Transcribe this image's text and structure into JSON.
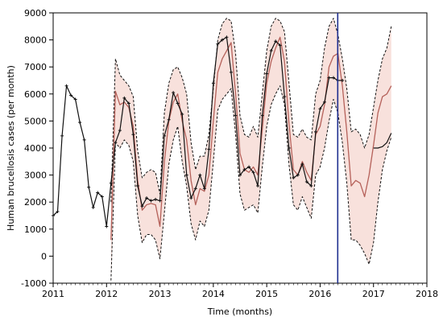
{
  "chart_data": {
    "type": "line",
    "xlabel": "Time (months)",
    "ylabel": "Human brucellosis cases (per month)",
    "xlim": [
      2011,
      2018
    ],
    "ylim": [
      -1000,
      9000
    ],
    "x_ticks": [
      2011,
      2012,
      2013,
      2014,
      2015,
      2016,
      2017,
      2018
    ],
    "y_ticks": [
      -1000,
      0,
      1000,
      2000,
      3000,
      4000,
      5000,
      6000,
      7000,
      8000,
      9000
    ],
    "grid": false,
    "vertical_line_x": 2016.33,
    "colors": {
      "observed": "#111111",
      "fitted": "#b5615a",
      "confidence": "#111111",
      "band": "#f2c8c0",
      "vline": "#1f2f8f"
    },
    "series": [
      {
        "role": "observed",
        "x": [
          2011.0,
          2011.083,
          2011.167,
          2011.25,
          2011.333,
          2011.417,
          2011.5,
          2011.583,
          2011.667,
          2011.75,
          2011.833,
          2011.917,
          2012.0,
          2012.083,
          2012.167,
          2012.25,
          2012.333,
          2012.417,
          2012.5,
          2012.583,
          2012.667,
          2012.75,
          2012.833,
          2012.917,
          2013.0,
          2013.083,
          2013.167,
          2013.25,
          2013.333,
          2013.417,
          2013.5,
          2013.583,
          2013.667,
          2013.75,
          2013.833,
          2013.917,
          2014.0,
          2014.083,
          2014.167,
          2014.25,
          2014.333,
          2014.417,
          2014.5,
          2014.583,
          2014.667,
          2014.75,
          2014.833,
          2014.917,
          2015.0,
          2015.083,
          2015.167,
          2015.25,
          2015.333,
          2015.417,
          2015.5,
          2015.583,
          2015.667,
          2015.75,
          2015.833,
          2015.917,
          2016.0,
          2016.083,
          2016.167,
          2016.25,
          2016.333,
          2016.417
        ],
        "values": [
          1500,
          1650,
          4450,
          6300,
          5950,
          5800,
          4950,
          4300,
          2550,
          1800,
          2350,
          2200,
          1100,
          2700,
          4200,
          4650,
          5850,
          5650,
          4500,
          2600,
          1850,
          2150,
          2050,
          2100,
          2050,
          4450,
          5050,
          6050,
          5650,
          5250,
          3000,
          2150,
          2500,
          3000,
          2500,
          3950,
          6400,
          7850,
          8000,
          8100,
          6800,
          5200,
          3000,
          3200,
          3300,
          3100,
          2600,
          5200,
          6750,
          7600,
          7950,
          7800,
          5900,
          4000,
          2900,
          3000,
          3400,
          2750,
          2600,
          4600,
          5450,
          5700,
          6600,
          6600,
          6500,
          6500
        ]
      },
      {
        "role": "observed-after",
        "x": [
          2017.0,
          2017.083,
          2017.167,
          2017.25,
          2017.333
        ],
        "values": [
          4000,
          4000,
          4050,
          4200,
          4550
        ]
      },
      {
        "role": "fitted",
        "x": [
          2012.083,
          2012.167,
          2012.25,
          2012.333,
          2012.417,
          2012.5,
          2012.583,
          2012.667,
          2012.75,
          2012.833,
          2012.917,
          2013.0,
          2013.083,
          2013.167,
          2013.25,
          2013.333,
          2013.417,
          2013.5,
          2013.583,
          2013.667,
          2013.75,
          2013.833,
          2013.917,
          2014.0,
          2014.083,
          2014.167,
          2014.25,
          2014.333,
          2014.417,
          2014.5,
          2014.583,
          2014.667,
          2014.75,
          2014.833,
          2014.917,
          2015.0,
          2015.083,
          2015.167,
          2015.25,
          2015.333,
          2015.417,
          2015.5,
          2015.583,
          2015.667,
          2015.75,
          2015.833,
          2015.917,
          2016.0,
          2016.083,
          2016.167,
          2016.25,
          2016.333,
          2016.417,
          2016.5,
          2016.583,
          2016.667,
          2016.75,
          2016.833,
          2016.917,
          2017.0,
          2017.083,
          2017.167,
          2017.25,
          2017.333
        ],
        "values": [
          600,
          6100,
          5600,
          5700,
          5500,
          4800,
          2800,
          1700,
          1900,
          1950,
          1900,
          1100,
          3500,
          5000,
          5700,
          6000,
          5000,
          4300,
          2800,
          1900,
          2500,
          2400,
          3000,
          5000,
          6800,
          7300,
          7600,
          7900,
          6000,
          3800,
          3200,
          3100,
          3300,
          3000,
          4700,
          6400,
          7200,
          7700,
          8100,
          7200,
          4900,
          3200,
          3000,
          3500,
          3100,
          2800,
          4500,
          4800,
          5600,
          7000,
          7400,
          7500,
          6300,
          4600,
          2600,
          2800,
          2700,
          2200,
          3000,
          4100,
          5300,
          5900,
          6000,
          6300
        ]
      },
      {
        "role": "upper",
        "x": [
          2012.083,
          2012.167,
          2012.25,
          2012.333,
          2012.417,
          2012.5,
          2012.583,
          2012.667,
          2012.75,
          2012.833,
          2012.917,
          2013.0,
          2013.083,
          2013.167,
          2013.25,
          2013.333,
          2013.417,
          2013.5,
          2013.583,
          2013.667,
          2013.75,
          2013.833,
          2013.917,
          2014.0,
          2014.083,
          2014.167,
          2014.25,
          2014.333,
          2014.417,
          2014.5,
          2014.583,
          2014.667,
          2014.75,
          2014.833,
          2014.917,
          2015.0,
          2015.083,
          2015.167,
          2015.25,
          2015.333,
          2015.417,
          2015.5,
          2015.583,
          2015.667,
          2015.75,
          2015.833,
          2015.917,
          2016.0,
          2016.083,
          2016.167,
          2016.25,
          2016.333,
          2016.417,
          2016.5,
          2016.583,
          2016.667,
          2016.75,
          2016.833,
          2016.917,
          2017.0,
          2017.083,
          2017.167,
          2017.25,
          2017.333
        ],
        "values": [
          2000,
          7300,
          6700,
          6500,
          6300,
          5900,
          3900,
          2900,
          3100,
          3200,
          3100,
          2300,
          5300,
          6400,
          6900,
          7000,
          6600,
          6000,
          4200,
          3200,
          3700,
          3700,
          4500,
          6200,
          8000,
          8600,
          8800,
          8700,
          7500,
          5200,
          4500,
          4400,
          4800,
          4400,
          6000,
          7600,
          8500,
          8800,
          8700,
          8300,
          6400,
          4500,
          4400,
          4700,
          4400,
          4300,
          6000,
          6500,
          7700,
          8500,
          8800,
          8200,
          7300,
          6200,
          4600,
          4700,
          4500,
          4000,
          4500,
          5500,
          6500,
          7300,
          7700,
          8500
        ]
      },
      {
        "role": "lower",
        "x": [
          2012.083,
          2012.167,
          2012.25,
          2012.333,
          2012.417,
          2012.5,
          2012.583,
          2012.667,
          2012.75,
          2012.833,
          2012.917,
          2013.0,
          2013.083,
          2013.167,
          2013.25,
          2013.333,
          2013.417,
          2013.5,
          2013.583,
          2013.667,
          2013.75,
          2013.833,
          2013.917,
          2014.0,
          2014.083,
          2014.167,
          2014.25,
          2014.333,
          2014.417,
          2014.5,
          2014.583,
          2014.667,
          2014.75,
          2014.833,
          2014.917,
          2015.0,
          2015.083,
          2015.167,
          2015.25,
          2015.333,
          2015.417,
          2015.5,
          2015.583,
          2015.667,
          2015.75,
          2015.833,
          2015.917,
          2016.0,
          2016.083,
          2016.167,
          2016.25,
          2016.333,
          2016.417,
          2016.5,
          2016.583,
          2016.667,
          2016.75,
          2016.833,
          2016.917,
          2017.0,
          2017.083,
          2017.167,
          2017.25,
          2017.333
        ],
        "values": [
          -900,
          4200,
          4000,
          4300,
          4100,
          3500,
          1500,
          500,
          800,
          800,
          600,
          -100,
          1600,
          3400,
          4300,
          4800,
          3500,
          2600,
          1200,
          600,
          1300,
          1100,
          1700,
          3500,
          5400,
          5800,
          6000,
          6200,
          4500,
          2300,
          1700,
          1800,
          1900,
          1600,
          3300,
          4800,
          5600,
          6000,
          6300,
          5600,
          3400,
          1900,
          1700,
          2200,
          1800,
          1400,
          3000,
          3300,
          4000,
          5000,
          5800,
          5300,
          4200,
          2700,
          600,
          600,
          400,
          100,
          -300,
          500,
          2000,
          3200,
          3900,
          4400
        ]
      }
    ]
  }
}
